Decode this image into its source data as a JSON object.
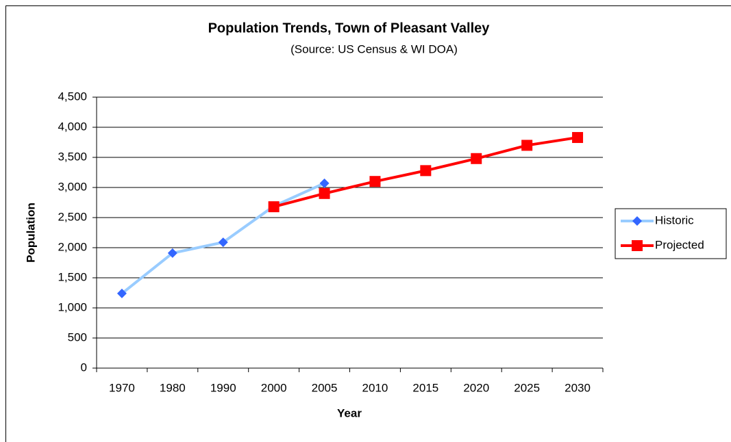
{
  "chart_data": {
    "type": "line",
    "title": "Population Trends, Town of Pleasant Valley",
    "subtitle": "(Source: US Census & WI DOA)",
    "x_label": "Year",
    "y_label": "Population",
    "categories": [
      "1970",
      "1980",
      "1990",
      "2000",
      "2005",
      "2010",
      "2015",
      "2020",
      "2025",
      "2030"
    ],
    "series": [
      {
        "name": "Historic",
        "color": "#99ccff",
        "marker_color": "#3366ff",
        "marker": "diamond",
        "values": [
          1240,
          1910,
          2090,
          2690,
          3070,
          null,
          null,
          null,
          null,
          null
        ]
      },
      {
        "name": "Projected",
        "color": "#ff0000",
        "marker_color": "#ff0000",
        "marker": "square",
        "values": [
          null,
          null,
          null,
          2680,
          2900,
          3100,
          3280,
          3480,
          3700,
          3830
        ]
      }
    ],
    "ylim": [
      0,
      4500
    ],
    "yticks": [
      0,
      500,
      {
        "value": 1000,
        "label": "1,000"
      },
      {
        "value": 1500,
        "label": "1,500"
      },
      {
        "value": 2000,
        "label": "2,000"
      },
      {
        "value": 2500,
        "label": "2,500"
      },
      {
        "value": 3000,
        "label": "3,000"
      },
      {
        "value": 3500,
        "label": "3,500"
      },
      {
        "value": 4000,
        "label": "4,000"
      },
      {
        "value": 4500,
        "label": "4,500"
      }
    ],
    "grid": true,
    "legend": "right"
  }
}
